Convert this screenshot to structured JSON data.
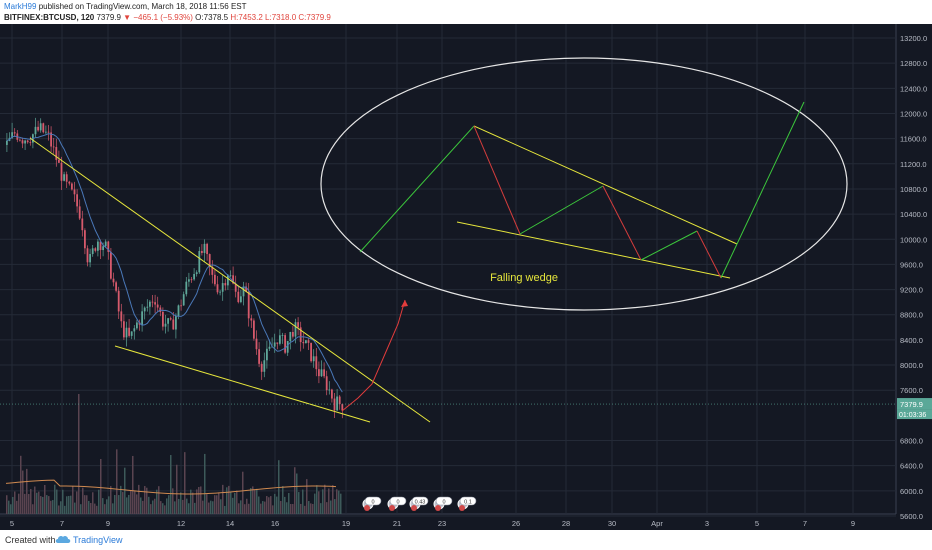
{
  "header": {
    "author": "MarkH99",
    "published_text": "published on TradingView.com, March 18, 2018 11:56 EST",
    "symbol": "BITFINEX:BTCUSD, 120",
    "last": "7379.9",
    "arrow": "▼",
    "change": "−465.1 (−5.93%)",
    "o": "O:7378.5",
    "h": "H:7453.2",
    "l": "L:7318.0",
    "c": "C:7379.9"
  },
  "footer": {
    "created": "Created with",
    "brand": "TradingView",
    "logo_icon": "tradingview-cloud-icon"
  },
  "colors": {
    "background": "#141823",
    "grid": "#242a37",
    "bull": "#5fa89a",
    "bear": "#d75a6c",
    "wedge_line": "#e6e63c",
    "projection": "#e23c3c",
    "wedge_up": "#3cc83c",
    "wedge_down": "#d23c3c",
    "ellipse": "#e6e6e6",
    "price_label": "#5aa898"
  },
  "chart_data": {
    "type": "candlestick",
    "symbol": "BITFINEX:BTCUSD",
    "interval": "120",
    "ylim": [
      5600,
      13400
    ],
    "y_ticks": [
      13200,
      12800,
      12400,
      12000,
      11600,
      11200,
      10800,
      10400,
      10000,
      9600,
      9200,
      8800,
      8400,
      8000,
      7600,
      6800,
      6400,
      6000,
      5600
    ],
    "y_tick_labels": [
      "13200.0",
      "12800.0",
      "12400.0",
      "12000.0",
      "11600.0",
      "11200.0",
      "10800.0",
      "10400.0",
      "10000.0",
      "9600.0",
      "9200.0",
      "8800.0",
      "8400.0",
      "8000.0",
      "7600.0",
      "6800.0",
      "6400.0",
      "6000.0",
      "5600.0"
    ],
    "x_tick_labels": [
      "5",
      "7",
      "9",
      "12",
      "14",
      "16",
      "19",
      "21",
      "23",
      "26",
      "28",
      "30",
      "Apr",
      "3",
      "5",
      "7",
      "9"
    ],
    "last_price": "7379.9",
    "countdown": "01:03:36",
    "annotation": "Falling wedge",
    "events": [
      "0",
      "0",
      "0.43",
      "0",
      "0.1",
      "0",
      "0.1"
    ],
    "price_path": [
      11500,
      11700,
      11600,
      11650,
      11750,
      11650,
      11300,
      10900,
      10700,
      10400,
      9600,
      10000,
      9900,
      9300,
      8600,
      8400,
      8700,
      8900,
      9100,
      8700,
      8600,
      8900,
      9300,
      9550,
      9850,
      9400,
      9200,
      9500,
      9100,
      9200,
      8500,
      8000,
      8200,
      8450,
      8300,
      8600,
      8400,
      8200,
      7900,
      7700,
      7400,
      7380
    ]
  }
}
